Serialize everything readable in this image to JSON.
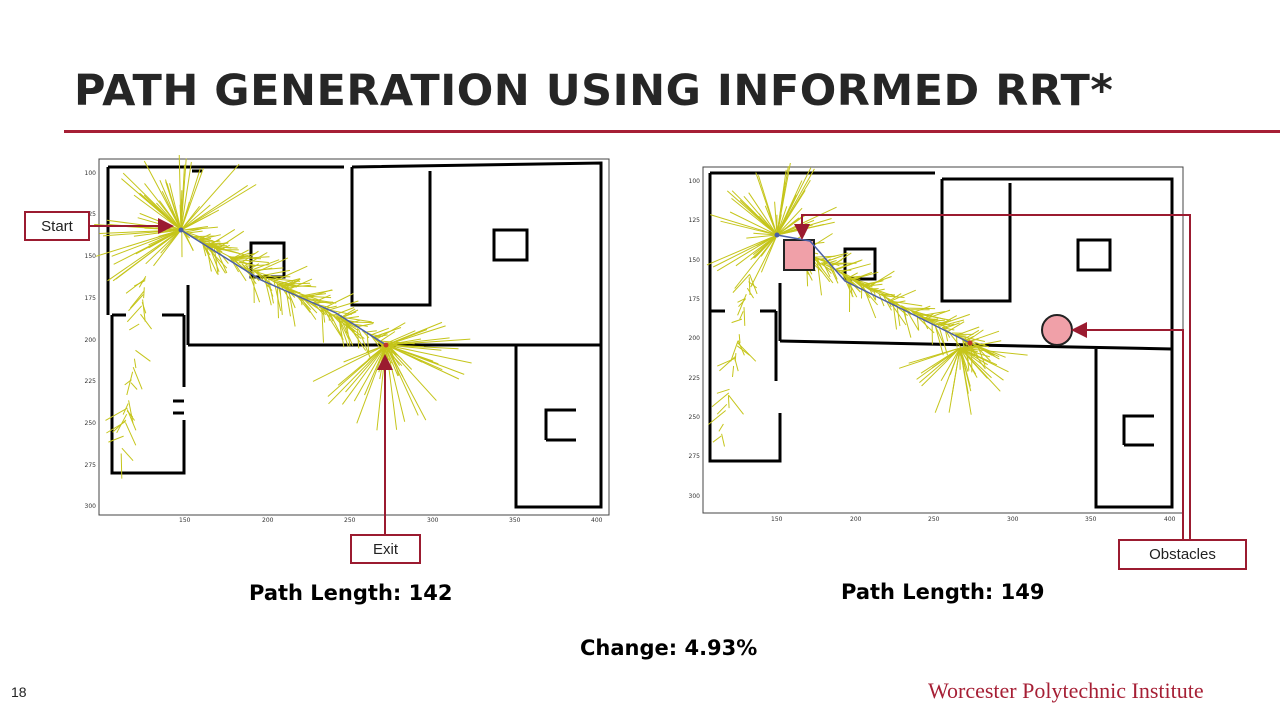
{
  "slide": {
    "title": "PATH GENERATION USING INFORMED RRT*",
    "slide_number": "18",
    "footer_brand": "Worcester Polytechnic Institute"
  },
  "left_plot": {
    "x_ticks": [
      "150",
      "200",
      "250",
      "300",
      "350",
      "400"
    ],
    "y_ticks": [
      "100",
      "125",
      "150",
      "175",
      "200",
      "225",
      "250",
      "275",
      "300"
    ],
    "caption": "Path Length: 142"
  },
  "right_plot": {
    "x_ticks": [
      "150",
      "200",
      "250",
      "300",
      "350",
      "400"
    ],
    "y_ticks": [
      "100",
      "125",
      "150",
      "175",
      "200",
      "225",
      "250",
      "275",
      "300"
    ],
    "caption": "Path Length: 149"
  },
  "callouts": {
    "start": "Start",
    "exit": "Exit",
    "obstacles": "Obstacles"
  },
  "change_text": "Change: 4.93%",
  "colors": {
    "accent": "#a61f35",
    "tree": "#c5c51a",
    "path": "#4a5fa8",
    "obstacle": "#f0a0a8"
  }
}
